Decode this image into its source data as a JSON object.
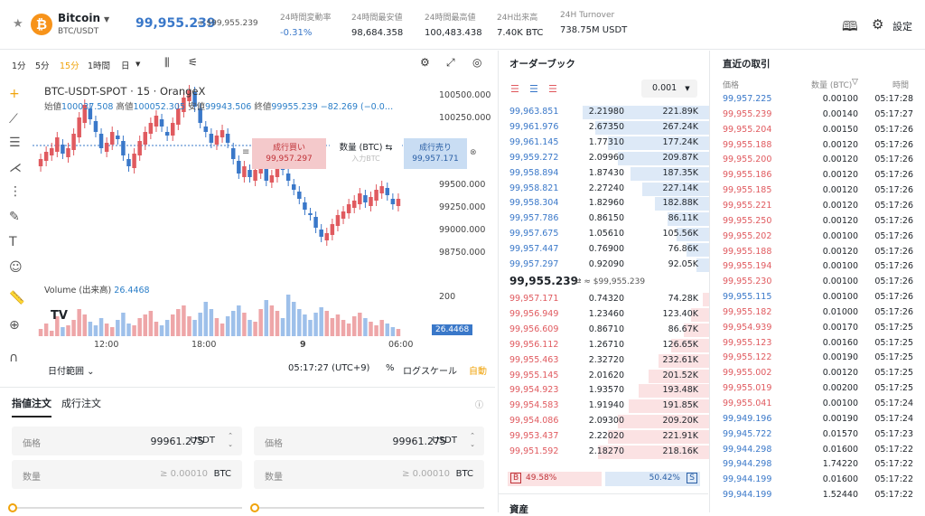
{
  "header": {
    "coin_name": "Bitcoin",
    "pair": "BTC/USDT",
    "price": "99,955.239",
    "fiat": "≈ $99,955.239",
    "stats": [
      {
        "label": "24時間変動率",
        "value": "-0.31%"
      },
      {
        "label": "24時間最安値",
        "value": "98,684.358"
      },
      {
        "label": "24時間最高値",
        "value": "100,483.438"
      },
      {
        "label": "24H出来高",
        "value": "7.40K BTC"
      },
      {
        "label": "24H Turnover",
        "value": "738.75M USDT"
      }
    ],
    "settings": "設定",
    "colors": {
      "up": "#e05a5f",
      "down": "#3a78c9",
      "accent": "#f0a30a",
      "coin": "#f7931a"
    }
  },
  "timeframes": [
    "1分",
    "5分",
    "15分",
    "1時間",
    "日"
  ],
  "chart": {
    "title": "BTC-USDT-SPOT · 15 · OrangeX",
    "ohlc_labels": {
      "o": "始値",
      "h": "高値",
      "l": "安値",
      "c": "終値"
    },
    "open": "100037.508",
    "high": "100052.305",
    "low": "99943.506",
    "close": "99955.239",
    "change": "−82.269 (−0.0…",
    "y_ticks": [
      "100500.000",
      "100250.000",
      "99500.000",
      "99250.000",
      "99000.000",
      "98750.000"
    ],
    "buy_label": "成行買い",
    "buy_price": "99,957.297",
    "qty_label": "数量 (BTC) ⇆",
    "qty_placeholder": "入力BTC",
    "sell_label": "成行売り",
    "sell_price": "99,957.171",
    "volume_label": "Volume (出来高)",
    "volume_value": "26.4468",
    "vol_tick": "200",
    "vol_tag": "26.4468",
    "x_ticks": [
      "12:00",
      "18:00",
      "9",
      "06:00"
    ],
    "date_range": "日付範囲",
    "time": "05:17:27 (UTC+9)",
    "pct": "%",
    "log": "ログスケール",
    "auto": "自動"
  },
  "order": {
    "tabs": [
      "指値注文",
      "成行注文"
    ],
    "price_label": "価格",
    "price_value": "99961.275",
    "unit": "USDT",
    "qty_label": "数量",
    "qty_placeholder": "≥ 0.00010",
    "qty_unit": "BTC"
  },
  "orderbook": {
    "title": "オーダーブック",
    "precision": "0.001",
    "asks": [
      [
        "99,963.851",
        "2.21980",
        "221.89K",
        1.0
      ],
      [
        "99,961.976",
        "2.67350",
        "267.24K",
        0.9
      ],
      [
        "99,961.145",
        "1.77310",
        "177.24K",
        0.8
      ],
      [
        "99,959.272",
        "2.09960",
        "209.87K",
        0.72
      ],
      [
        "99,958.894",
        "1.87430",
        "187.35K",
        0.62
      ],
      [
        "99,958.821",
        "2.27240",
        "227.14K",
        0.53
      ],
      [
        "99,958.304",
        "1.82960",
        "182.88K",
        0.43
      ],
      [
        "99,957.786",
        "0.86150",
        "86.11K",
        0.33
      ],
      [
        "99,957.675",
        "1.05610",
        "105.56K",
        0.26
      ],
      [
        "99,957.447",
        "0.76900",
        "76.86K",
        0.18
      ],
      [
        "99,957.297",
        "0.92090",
        "92.05K",
        0.1
      ]
    ],
    "mid": "99,955.239",
    "mid_fiat": "≈ $99,955.239",
    "bids": [
      [
        "99,957.171",
        "0.74320",
        "74.28K",
        0.05
      ],
      [
        "99,956.949",
        "1.23460",
        "123.40K",
        0.14
      ],
      [
        "99,956.609",
        "0.86710",
        "86.67K",
        0.2
      ],
      [
        "99,956.112",
        "1.26710",
        "126.65K",
        0.3
      ],
      [
        "99,955.463",
        "2.32720",
        "232.61K",
        0.4
      ],
      [
        "99,955.145",
        "2.01620",
        "201.52K",
        0.48
      ],
      [
        "99,954.923",
        "1.93570",
        "193.48K",
        0.56
      ],
      [
        "99,954.583",
        "1.91940",
        "191.85K",
        0.64
      ],
      [
        "99,954.086",
        "2.09300",
        "209.20K",
        0.72
      ],
      [
        "99,953.437",
        "2.22020",
        "221.91K",
        0.8
      ],
      [
        "99,951.592",
        "2.18270",
        "218.16K",
        0.88
      ]
    ],
    "buy_ratio": "49.58%",
    "sell_ratio": "50.42%",
    "b": "B",
    "s": "S"
  },
  "trades": {
    "title": "直近の取引",
    "cols": [
      "価格",
      "数量 (BTC)",
      "時間"
    ],
    "rows": [
      [
        "99,957.225",
        "0.00100",
        "05:17:28",
        "up"
      ],
      [
        "99,955.239",
        "0.00140",
        "05:17:27",
        "dn"
      ],
      [
        "99,955.204",
        "0.00150",
        "05:17:26",
        "dn"
      ],
      [
        "99,955.188",
        "0.00120",
        "05:17:26",
        "dn"
      ],
      [
        "99,955.200",
        "0.00120",
        "05:17:26",
        "dn"
      ],
      [
        "99,955.186",
        "0.00120",
        "05:17:26",
        "dn"
      ],
      [
        "99,955.185",
        "0.00120",
        "05:17:26",
        "dn"
      ],
      [
        "99,955.221",
        "0.00120",
        "05:17:26",
        "dn"
      ],
      [
        "99,955.250",
        "0.00120",
        "05:17:26",
        "dn"
      ],
      [
        "99,955.202",
        "0.00100",
        "05:17:26",
        "dn"
      ],
      [
        "99,955.188",
        "0.00120",
        "05:17:26",
        "dn"
      ],
      [
        "99,955.194",
        "0.00100",
        "05:17:26",
        "dn"
      ],
      [
        "99,955.230",
        "0.00100",
        "05:17:26",
        "dn"
      ],
      [
        "99,955.115",
        "0.00100",
        "05:17:26",
        "up"
      ],
      [
        "99,955.182",
        "0.01000",
        "05:17:26",
        "dn"
      ],
      [
        "99,954.939",
        "0.00170",
        "05:17:25",
        "dn"
      ],
      [
        "99,955.123",
        "0.00160",
        "05:17:25",
        "dn"
      ],
      [
        "99,955.122",
        "0.00190",
        "05:17:25",
        "dn"
      ],
      [
        "99,955.002",
        "0.00120",
        "05:17:25",
        "dn"
      ],
      [
        "99,955.019",
        "0.00200",
        "05:17:25",
        "dn"
      ],
      [
        "99,955.041",
        "0.00100",
        "05:17:24",
        "dn"
      ],
      [
        "99,949.196",
        "0.00190",
        "05:17:24",
        "up"
      ],
      [
        "99,945.722",
        "0.01570",
        "05:17:23",
        "up"
      ],
      [
        "99,944.298",
        "0.01600",
        "05:17:22",
        "up"
      ],
      [
        "99,944.298",
        "1.74220",
        "05:17:22",
        "up"
      ],
      [
        "99,944.199",
        "0.01600",
        "05:17:22",
        "up"
      ],
      [
        "99,944.199",
        "1.52440",
        "05:17:22",
        "up"
      ]
    ]
  },
  "assets_title": "資産",
  "candles": [
    [
      112,
      120
    ],
    [
      118,
      128
    ],
    [
      124,
      132
    ],
    [
      128,
      144
    ],
    [
      136,
      126
    ],
    [
      122,
      132
    ],
    [
      130,
      148
    ],
    [
      144,
      166
    ],
    [
      160,
      180
    ],
    [
      176,
      164
    ],
    [
      162,
      150
    ],
    [
      148,
      132
    ],
    [
      128,
      138
    ],
    [
      136,
      150
    ],
    [
      146,
      142
    ],
    [
      140,
      124
    ],
    [
      120,
      112
    ],
    [
      110,
      126
    ],
    [
      124,
      140
    ],
    [
      136,
      150
    ],
    [
      148,
      160
    ],
    [
      156,
      168
    ],
    [
      164,
      156
    ],
    [
      150,
      146
    ],
    [
      146,
      160
    ],
    [
      158,
      176
    ],
    [
      172,
      188
    ],
    [
      184,
      196
    ],
    [
      194,
      178
    ],
    [
      176,
      160
    ],
    [
      156,
      150
    ],
    [
      148,
      138
    ],
    [
      136,
      146
    ],
    [
      144,
      152
    ],
    [
      148,
      138
    ],
    [
      132,
      120
    ],
    [
      118,
      104
    ],
    [
      100,
      112
    ],
    [
      108,
      100
    ],
    [
      96,
      108
    ],
    [
      104,
      112
    ],
    [
      110,
      96
    ],
    [
      94,
      102
    ],
    [
      100,
      120
    ],
    [
      116,
      108
    ],
    [
      104,
      96
    ],
    [
      92,
      86
    ],
    [
      84,
      76
    ],
    [
      72,
      64
    ],
    [
      60,
      58
    ],
    [
      56,
      44
    ],
    [
      42,
      34
    ],
    [
      30,
      38
    ],
    [
      36,
      48
    ],
    [
      46,
      58
    ],
    [
      54,
      62
    ],
    [
      60,
      70
    ],
    [
      66,
      74
    ],
    [
      70,
      82
    ],
    [
      80,
      72
    ],
    [
      68,
      78
    ],
    [
      74,
      86
    ],
    [
      82,
      90
    ],
    [
      88,
      80
    ],
    [
      76,
      70
    ],
    [
      68,
      76
    ]
  ],
  "volumes": [
    8,
    14,
    6,
    22,
    10,
    12,
    18,
    30,
    24,
    16,
    12,
    20,
    14,
    10,
    18,
    26,
    14,
    12,
    20,
    24,
    28,
    16,
    12,
    18,
    24,
    30,
    34,
    22,
    18,
    26,
    38,
    30,
    20,
    14,
    22,
    28,
    34,
    26,
    18,
    16,
    30,
    40,
    34,
    28,
    20,
    46,
    38,
    30,
    24,
    18,
    26,
    32,
    28,
    20,
    24,
    18,
    14,
    22,
    26,
    20,
    16,
    12,
    18,
    14,
    10,
    8
  ]
}
